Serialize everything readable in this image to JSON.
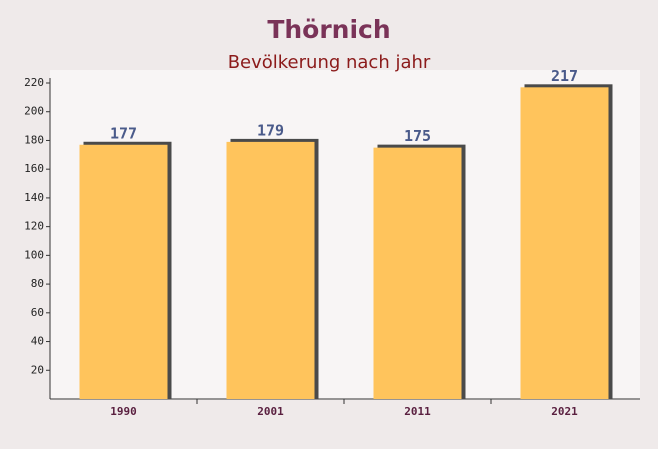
{
  "chart_data": {
    "type": "bar",
    "title": "Thörnich",
    "subtitle": "Bevölkerung nach jahr",
    "categories": [
      "1990",
      "2001",
      "2011",
      "2021"
    ],
    "values": [
      177,
      179,
      175,
      217
    ],
    "color": "#ffc45c",
    "ylim": [
      0,
      220
    ],
    "yticks": [
      20,
      40,
      60,
      80,
      100,
      120,
      140,
      160,
      180,
      200,
      220
    ],
    "grid": false
  }
}
